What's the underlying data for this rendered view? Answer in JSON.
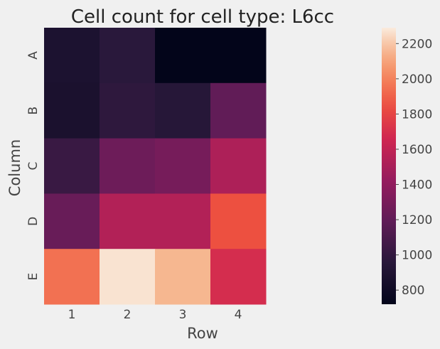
{
  "chart_data": {
    "type": "heatmap",
    "title": "Cell count for cell type: L6cc",
    "xlabel": "Row",
    "ylabel": "Column",
    "x_categories": [
      "1",
      "2",
      "3",
      "4"
    ],
    "y_categories": [
      "A",
      "B",
      "C",
      "D",
      "E"
    ],
    "values": [
      [
        880,
        960,
        720,
        720
      ],
      [
        870,
        980,
        940,
        1200
      ],
      [
        1030,
        1250,
        1290,
        1520
      ],
      [
        1230,
        1540,
        1540,
        1850
      ],
      [
        1950,
        2270,
        2160,
        1690
      ]
    ],
    "colorbar": {
      "min": 720,
      "max": 2290,
      "ticks": [
        800,
        1000,
        1200,
        1400,
        1600,
        1800,
        2000,
        2200
      ],
      "colormap": "rocket"
    }
  }
}
